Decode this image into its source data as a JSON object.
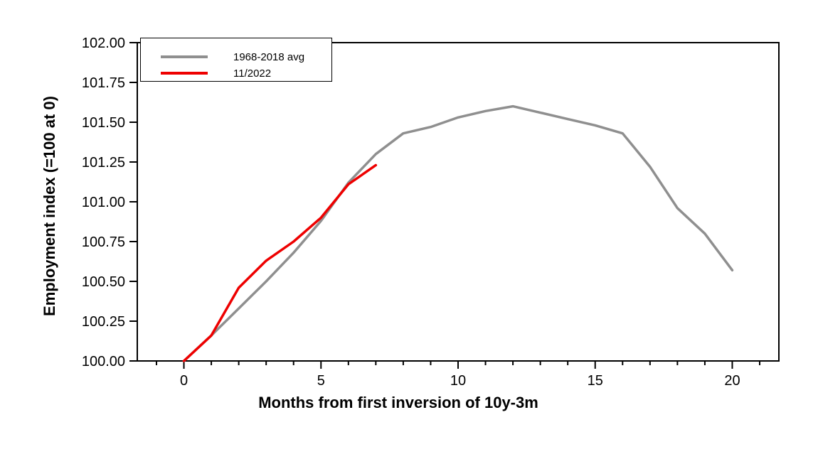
{
  "chart_data": {
    "type": "line",
    "title": "",
    "xlabel": "Months from first inversion of 10y-3m",
    "ylabel": "Employment index (=100 at 0)",
    "xlim": [
      -1.7,
      21.7
    ],
    "ylim": [
      100,
      102
    ],
    "x_ticks_major": [
      0,
      5,
      10,
      15,
      20
    ],
    "x_ticks_minor_step": 1,
    "y_ticks": [
      100,
      100.25,
      100.5,
      100.75,
      101,
      101.25,
      101.5,
      101.75,
      102
    ],
    "y_tick_decimals": 2,
    "grid": false,
    "legend_position": "top-left",
    "axis_color": "#000000",
    "background_color": "#ffffff",
    "series": [
      {
        "name": "1968-2018 avg",
        "color": "#8f8f8f",
        "x": [
          0,
          1,
          2,
          3,
          4,
          5,
          6,
          7,
          8,
          9,
          10,
          11,
          12,
          13,
          14,
          15,
          16,
          17,
          18,
          19,
          20
        ],
        "values": [
          100.0,
          100.16,
          100.33,
          100.5,
          100.68,
          100.88,
          101.12,
          101.3,
          101.43,
          101.47,
          101.53,
          101.57,
          101.6,
          101.56,
          101.52,
          101.48,
          101.43,
          101.22,
          100.96,
          100.8,
          100.57
        ]
      },
      {
        "name": "11/2022",
        "color": "#ee0000",
        "x": [
          0,
          1,
          2,
          3,
          4,
          5,
          6,
          7
        ],
        "values": [
          100.0,
          100.16,
          100.46,
          100.63,
          100.75,
          100.9,
          101.11,
          101.23
        ]
      }
    ]
  }
}
